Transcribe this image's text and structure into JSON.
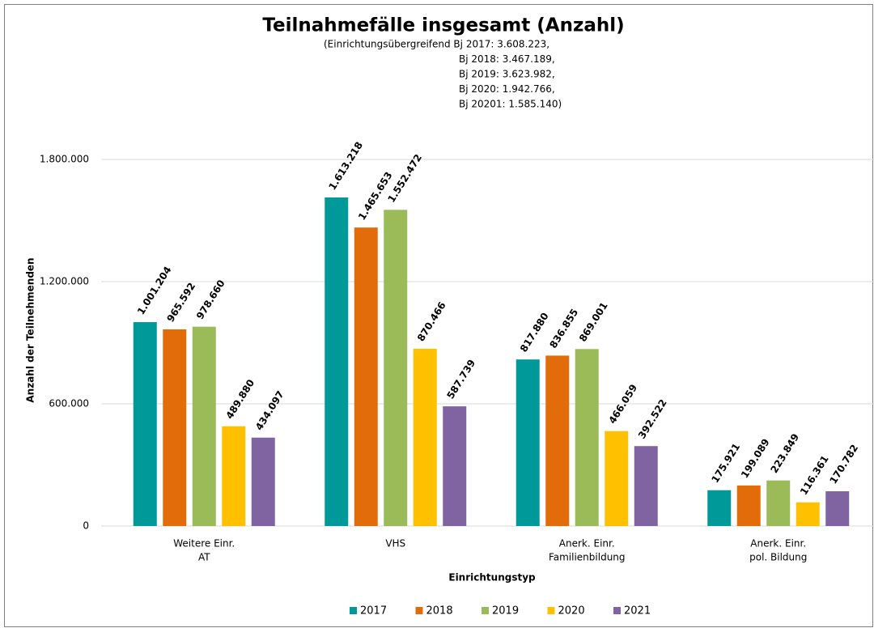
{
  "chart_data": {
    "type": "bar",
    "title": "Teilnahmefälle insgesamt (Anzahl)",
    "subtitle": [
      "(Einrichtungsübergreifend Bj 2017: 3.608.223,",
      "Bj 2018: 3.467.189,",
      "Bj 2019: 3.623.982,",
      "Bj 2020: 1.942.766,",
      "Bj 20201: 1.585.140)"
    ],
    "y_label": "Anzahl der Teilnehmenden",
    "x_label": "Einrichtungstyp",
    "categories": [
      [
        "Weitere Einr.",
        "AT"
      ],
      [
        "VHS"
      ],
      [
        "Anerk. Einr.",
        "Familienbildung"
      ],
      [
        "Anerk. Einr.",
        "pol. Bildung"
      ]
    ],
    "series": [
      {
        "name": "2017",
        "color": "#009999",
        "values": [
          1001204,
          1613218,
          817880,
          175921
        ],
        "value_labels": [
          "1.001.204",
          "1.613.218",
          "817.880",
          "175.921"
        ]
      },
      {
        "name": "2018",
        "color": "#e36c0a",
        "values": [
          965592,
          1465653,
          836855,
          199089
        ],
        "value_labels": [
          "965.592",
          "1.465.653",
          "836.855",
          "199.089"
        ]
      },
      {
        "name": "2019",
        "color": "#9bbb59",
        "values": [
          978660,
          1552472,
          869001,
          223849
        ],
        "value_labels": [
          "978.660",
          "1.552.472",
          "869.001",
          "223.849"
        ]
      },
      {
        "name": "2020",
        "color": "#ffc000",
        "values": [
          489880,
          870466,
          466059,
          116361
        ],
        "value_labels": [
          "489.880",
          "870.466",
          "466.059",
          "116.361"
        ]
      },
      {
        "name": "2021",
        "color": "#8064a2",
        "values": [
          434097,
          587739,
          392522,
          170782
        ],
        "value_labels": [
          "434.097",
          "587.739",
          "392.522",
          "170.782"
        ]
      }
    ],
    "ylim": [
      0,
      1800000
    ],
    "yticks": [
      0,
      {
        "value": 600000,
        "label": "600.000"
      },
      {
        "value": 1200000,
        "label": "1.200.000"
      },
      {
        "value": 1800000,
        "label": "1.800.000"
      }
    ],
    "grid": true,
    "legend": "bottom"
  }
}
